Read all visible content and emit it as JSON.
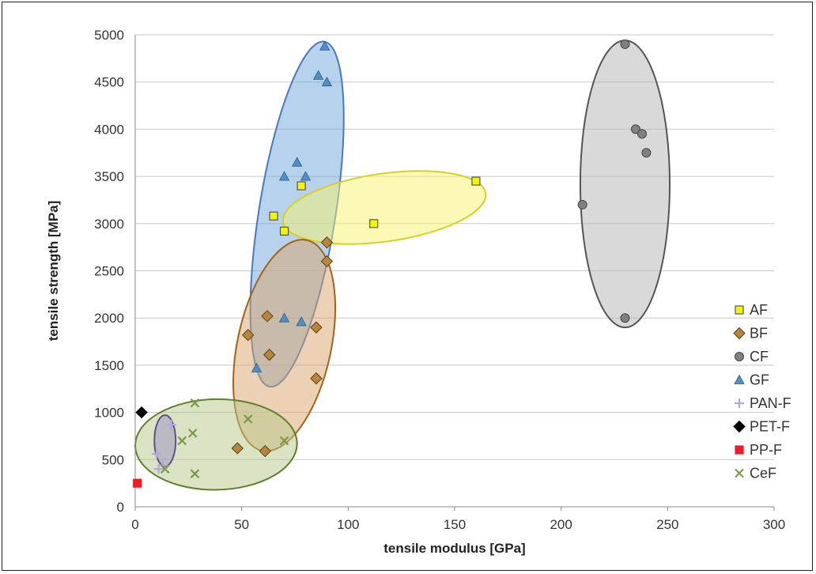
{
  "chart_data": {
    "type": "scatter",
    "title": "",
    "xlabel": "tensile modulus [GPa]",
    "ylabel": "tensile strength [MPa]",
    "xlim": [
      0,
      300
    ],
    "ylim": [
      0,
      5000
    ],
    "x_ticks": [
      0,
      50,
      100,
      150,
      200,
      250,
      300
    ],
    "y_ticks": [
      0,
      500,
      1000,
      1500,
      2000,
      2500,
      3000,
      3500,
      4000,
      4500,
      5000
    ],
    "grid": "horizontal",
    "legend_position": "right",
    "series": [
      {
        "name": "AF",
        "marker": "square",
        "color": "#f5f500",
        "edge": "#555555",
        "points": [
          [
            65,
            3080
          ],
          [
            70,
            2920
          ],
          [
            78,
            3400
          ],
          [
            112,
            3000
          ],
          [
            160,
            3450
          ]
        ]
      },
      {
        "name": "BF",
        "marker": "diamond",
        "color": "#b8863b",
        "edge": "#5a3f10",
        "points": [
          [
            53,
            1820
          ],
          [
            62,
            2020
          ],
          [
            63,
            1610
          ],
          [
            85,
            1900
          ],
          [
            85,
            1360
          ],
          [
            90,
            2800
          ],
          [
            90,
            2600
          ],
          [
            48,
            620
          ],
          [
            61,
            590
          ]
        ]
      },
      {
        "name": "CF",
        "marker": "circle",
        "color": "#808080",
        "edge": "#444444",
        "points": [
          [
            230,
            4900
          ],
          [
            235,
            4000
          ],
          [
            238,
            3950
          ],
          [
            240,
            3750
          ],
          [
            210,
            3200
          ],
          [
            230,
            2000
          ]
        ]
      },
      {
        "name": "GF",
        "marker": "triangle",
        "color": "#4f8fc4",
        "edge": "#2a5e8a",
        "points": [
          [
            89,
            4880
          ],
          [
            86,
            4570
          ],
          [
            90,
            4500
          ],
          [
            76,
            3650
          ],
          [
            70,
            3500
          ],
          [
            80,
            3500
          ],
          [
            70,
            2000
          ],
          [
            78,
            1960
          ],
          [
            57,
            1470
          ]
        ]
      },
      {
        "name": "PAN-F",
        "marker": "plus",
        "color": "#b0a8d8",
        "edge": "#b0a8d8",
        "points": [
          [
            10,
            560
          ],
          [
            11,
            400
          ],
          [
            13,
            440
          ],
          [
            17,
            870
          ]
        ]
      },
      {
        "name": "PET-F",
        "marker": "diamond",
        "color": "#000000",
        "edge": "#000000",
        "points": [
          [
            3,
            1000
          ]
        ]
      },
      {
        "name": "PP-F",
        "marker": "square",
        "color": "#ee1c24",
        "edge": "#ee1c24",
        "points": [
          [
            1,
            250
          ]
        ]
      },
      {
        "name": "CeF",
        "marker": "x",
        "color": "#7a9a4a",
        "edge": "#7a9a4a",
        "points": [
          [
            14,
            400
          ],
          [
            22,
            700
          ],
          [
            27,
            780
          ],
          [
            28,
            1100
          ],
          [
            28,
            350
          ],
          [
            53,
            930
          ],
          [
            70,
            700
          ]
        ]
      }
    ],
    "ellipses": [
      {
        "group": "GF",
        "fill": "#6fa6dc",
        "stroke": "#4a78c0",
        "cx": 76,
        "cy": 3100,
        "rx": 18,
        "ry": 1850,
        "tilt": 9
      },
      {
        "group": "AF",
        "fill": "#f8f36b",
        "stroke": "#d8cf20",
        "cx": 117,
        "cy": 3170,
        "rx": 48,
        "ry": 360,
        "tilt": -8
      },
      {
        "group": "BF",
        "fill": "#d9a46a",
        "stroke": "#a06418",
        "cx": 70,
        "cy": 1710,
        "rx": 22,
        "ry": 1140,
        "tilt": 12
      },
      {
        "group": "CF",
        "fill": "#b4b4b4",
        "stroke": "#555555",
        "cx": 230,
        "cy": 3420,
        "rx": 21,
        "ry": 1520,
        "tilt": 0
      },
      {
        "group": "CeF",
        "fill": "#b5c98a",
        "stroke": "#5f7f2a",
        "cx": 38,
        "cy": 660,
        "rx": 38,
        "ry": 480,
        "tilt": -1
      },
      {
        "group": "PAN-F",
        "fill": "#9c8fbf",
        "stroke": "#5e4f8f",
        "cx": 14,
        "cy": 700,
        "rx": 5,
        "ry": 270,
        "tilt": 0
      }
    ]
  }
}
